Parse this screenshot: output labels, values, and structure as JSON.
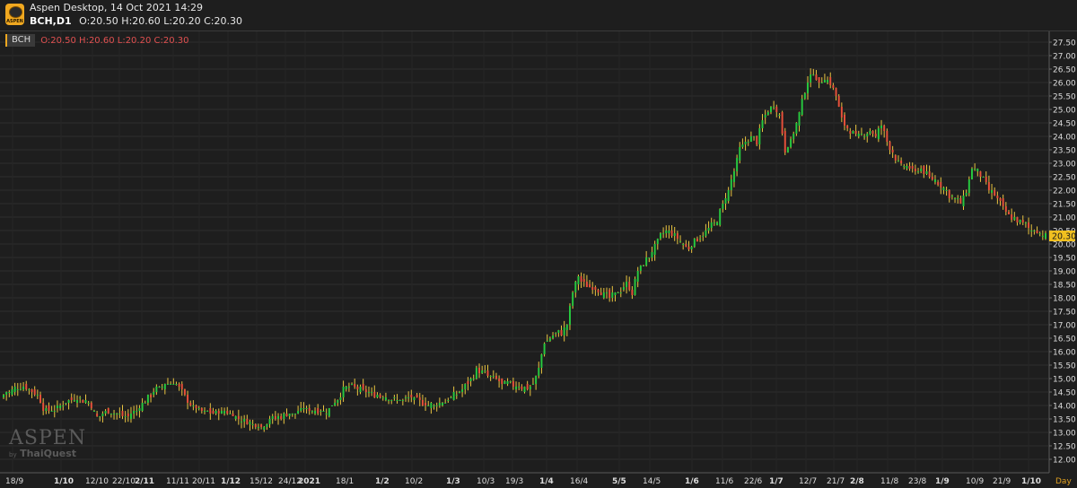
{
  "header": {
    "app_title": "Aspen Desktop, 14 Oct 2021 14:29",
    "symbol": "BCH,D1",
    "ohlc_text": "O:20.50 H:20.60 L:20.20 C:20.30",
    "logo_text": "ASPEN"
  },
  "legend": {
    "symbol": "BCH",
    "ohlc_text": "O:20.50 H:20.60 L:20.20 C:20.30"
  },
  "watermark": {
    "main": "ASPEN",
    "by": "by",
    "brand": "ThaiQuest"
  },
  "colors": {
    "background": "#1e1e1e",
    "up": "#27c93f",
    "down": "#e8503a",
    "wick": "#e8c440",
    "grid": "#2e2e2e",
    "axis_text": "#dcdcdc",
    "last_price_bg": "#f0c020"
  },
  "chart_data": {
    "type": "candlestick",
    "title": "BCH,D1",
    "last_price": 20.3,
    "last_price_label": "20.30",
    "timeframe_label": "Day",
    "ylim": [
      11.7,
      27.85
    ],
    "y_ticks": [
      "12.00",
      "12.50",
      "13.00",
      "13.50",
      "14.00",
      "14.50",
      "15.00",
      "15.50",
      "16.00",
      "16.50",
      "17.00",
      "17.50",
      "18.00",
      "18.50",
      "19.00",
      "19.50",
      "20.00",
      "20.50",
      "21.00",
      "21.50",
      "22.00",
      "22.50",
      "23.00",
      "23.50",
      "24.00",
      "24.50",
      "25.00",
      "25.50",
      "26.00",
      "26.50",
      "27.00",
      "27.50"
    ],
    "x_tick_labels": [
      {
        "label": "18/9",
        "bold": false
      },
      {
        "label": "1/10",
        "bold": true
      },
      {
        "label": "12/10",
        "bold": false
      },
      {
        "label": "22/10",
        "bold": false
      },
      {
        "label": "2/11",
        "bold": true
      },
      {
        "label": "11/11",
        "bold": false
      },
      {
        "label": "20/11",
        "bold": false
      },
      {
        "label": "1/12",
        "bold": true
      },
      {
        "label": "15/12",
        "bold": false
      },
      {
        "label": "24/12",
        "bold": false
      },
      {
        "label": "2021",
        "bold": true
      },
      {
        "label": "18/1",
        "bold": false
      },
      {
        "label": "1/2",
        "bold": true
      },
      {
        "label": "10/2",
        "bold": false
      },
      {
        "label": "1/3",
        "bold": true
      },
      {
        "label": "10/3",
        "bold": false
      },
      {
        "label": "19/3",
        "bold": false
      },
      {
        "label": "1/4",
        "bold": true
      },
      {
        "label": "16/4",
        "bold": false
      },
      {
        "label": "5/5",
        "bold": true
      },
      {
        "label": "14/5",
        "bold": false
      },
      {
        "label": "1/6",
        "bold": true
      },
      {
        "label": "11/6",
        "bold": false
      },
      {
        "label": "22/6",
        "bold": false
      },
      {
        "label": "1/7",
        "bold": true
      },
      {
        "label": "12/7",
        "bold": false
      },
      {
        "label": "21/7",
        "bold": false
      },
      {
        "label": "2/8",
        "bold": true
      },
      {
        "label": "11/8",
        "bold": false
      },
      {
        "label": "23/8",
        "bold": false
      },
      {
        "label": "1/9",
        "bold": true
      },
      {
        "label": "10/9",
        "bold": false
      },
      {
        "label": "21/9",
        "bold": false
      },
      {
        "label": "1/10",
        "bold": true
      }
    ],
    "price_path": [
      [
        0,
        14.4
      ],
      [
        3,
        14.6
      ],
      [
        6,
        14.7
      ],
      [
        9,
        14.6
      ],
      [
        12,
        14.4
      ],
      [
        14,
        13.9
      ],
      [
        17,
        13.8
      ],
      [
        20,
        14.0
      ],
      [
        23,
        14.2
      ],
      [
        26,
        14.3
      ],
      [
        30,
        14.1
      ],
      [
        33,
        13.6
      ],
      [
        37,
        13.8
      ],
      [
        40,
        13.7
      ],
      [
        44,
        13.6
      ],
      [
        47,
        13.8
      ],
      [
        50,
        14.2
      ],
      [
        54,
        14.6
      ],
      [
        57,
        14.8
      ],
      [
        60,
        14.9
      ],
      [
        63,
        14.5
      ],
      [
        66,
        14.0
      ],
      [
        70,
        13.8
      ],
      [
        74,
        13.7
      ],
      [
        78,
        13.8
      ],
      [
        82,
        13.6
      ],
      [
        85,
        13.4
      ],
      [
        88,
        13.3
      ],
      [
        91,
        13.2
      ],
      [
        94,
        13.5
      ],
      [
        98,
        13.6
      ],
      [
        102,
        13.7
      ],
      [
        106,
        13.9
      ],
      [
        110,
        13.8
      ],
      [
        114,
        13.8
      ],
      [
        117,
        14.1
      ],
      [
        120,
        14.6
      ],
      [
        124,
        14.7
      ],
      [
        128,
        14.5
      ],
      [
        132,
        14.4
      ],
      [
        136,
        14.3
      ],
      [
        140,
        14.2
      ],
      [
        144,
        14.3
      ],
      [
        148,
        14.1
      ],
      [
        152,
        14.0
      ],
      [
        155,
        14.1
      ],
      [
        158,
        14.3
      ],
      [
        161,
        14.5
      ],
      [
        164,
        14.8
      ],
      [
        167,
        15.3
      ],
      [
        170,
        15.2
      ],
      [
        173,
        15.0
      ],
      [
        176,
        14.8
      ],
      [
        179,
        14.8
      ],
      [
        182,
        14.7
      ],
      [
        185,
        14.6
      ],
      [
        187,
        14.8
      ],
      [
        189,
        15.4
      ],
      [
        191,
        16.3
      ],
      [
        193,
        16.5
      ],
      [
        195,
        16.7
      ],
      [
        197,
        16.7
      ],
      [
        199,
        17.0
      ],
      [
        201,
        18.2
      ],
      [
        203,
        18.8
      ],
      [
        205,
        18.5
      ],
      [
        208,
        18.4
      ],
      [
        211,
        18.2
      ],
      [
        214,
        18.0
      ],
      [
        217,
        18.2
      ],
      [
        220,
        18.5
      ],
      [
        222,
        18.2
      ],
      [
        224,
        19.0
      ],
      [
        227,
        19.4
      ],
      [
        230,
        19.9
      ],
      [
        232,
        20.3
      ],
      [
        234,
        20.5
      ],
      [
        236,
        20.4
      ],
      [
        238,
        20.2
      ],
      [
        240,
        20.0
      ],
      [
        242,
        19.8
      ],
      [
        244,
        20.1
      ],
      [
        246,
        20.3
      ],
      [
        248,
        20.5
      ],
      [
        250,
        20.7
      ],
      [
        252,
        20.9
      ],
      [
        254,
        21.5
      ],
      [
        256,
        22.0
      ],
      [
        258,
        22.7
      ],
      [
        260,
        23.5
      ],
      [
        262,
        23.8
      ],
      [
        264,
        24.0
      ],
      [
        266,
        23.8
      ],
      [
        268,
        24.6
      ],
      [
        270,
        25.0
      ],
      [
        272,
        25.2
      ],
      [
        274,
        24.8
      ],
      [
        276,
        23.5
      ],
      [
        278,
        23.8
      ],
      [
        280,
        24.5
      ],
      [
        282,
        25.3
      ],
      [
        284,
        26.1
      ],
      [
        286,
        26.4
      ],
      [
        288,
        25.9
      ],
      [
        290,
        26.2
      ],
      [
        292,
        26.0
      ],
      [
        294,
        25.5
      ],
      [
        296,
        24.6
      ],
      [
        298,
        24.3
      ],
      [
        300,
        24.1
      ],
      [
        302,
        24.0
      ],
      [
        304,
        24.1
      ],
      [
        306,
        24.2
      ],
      [
        308,
        24.0
      ],
      [
        310,
        24.4
      ],
      [
        312,
        23.8
      ],
      [
        314,
        23.4
      ],
      [
        316,
        23.0
      ],
      [
        318,
        22.9
      ],
      [
        320,
        22.8
      ],
      [
        322,
        22.7
      ],
      [
        324,
        22.8
      ],
      [
        326,
        22.6
      ],
      [
        328,
        22.4
      ],
      [
        330,
        22.3
      ],
      [
        332,
        22.1
      ],
      [
        334,
        21.8
      ],
      [
        336,
        21.7
      ],
      [
        338,
        21.5
      ],
      [
        340,
        22.0
      ],
      [
        342,
        22.8
      ],
      [
        344,
        22.7
      ],
      [
        346,
        22.4
      ],
      [
        348,
        22.0
      ],
      [
        350,
        21.8
      ],
      [
        352,
        21.5
      ],
      [
        354,
        21.2
      ],
      [
        356,
        21.0
      ],
      [
        358,
        20.9
      ],
      [
        360,
        20.8
      ],
      [
        362,
        20.6
      ],
      [
        364,
        20.5
      ],
      [
        366,
        20.4
      ],
      [
        368,
        20.3
      ]
    ]
  }
}
